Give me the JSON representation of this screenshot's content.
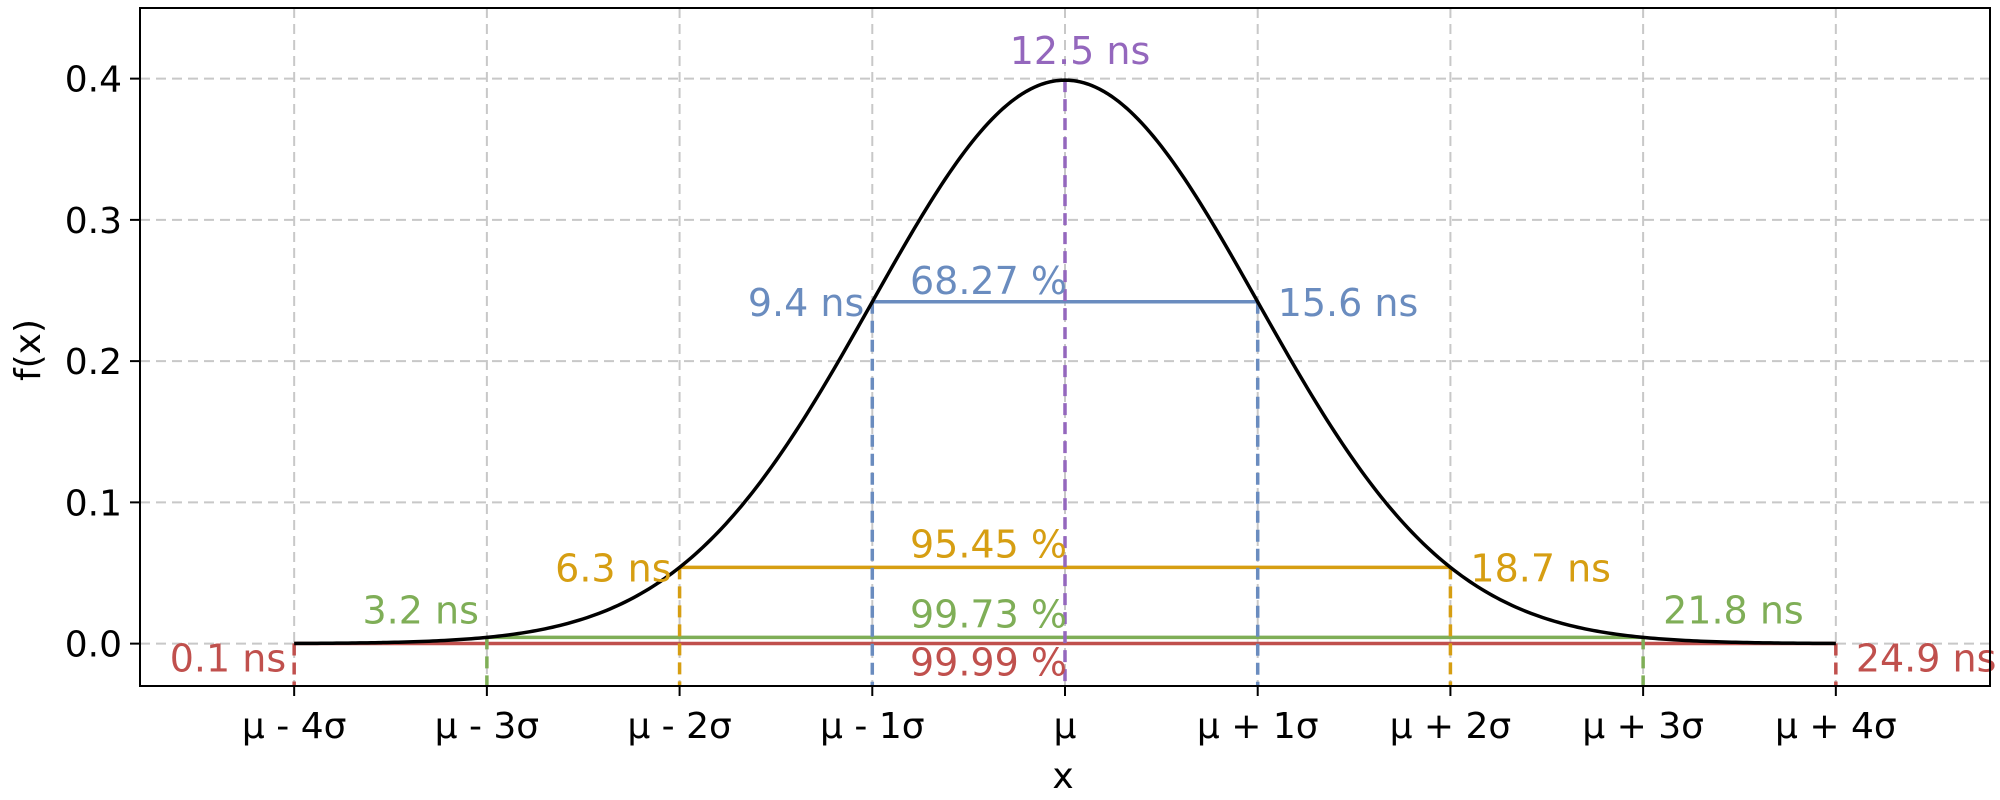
{
  "chart_data": {
    "type": "line",
    "title": "",
    "xlabel": "x",
    "ylabel": "f(x)",
    "xlim": [
      -4.8,
      4.8
    ],
    "ylim": [
      -0.03,
      0.45
    ],
    "grid": true,
    "curve": {
      "name": "",
      "function": "standard normal pdf",
      "x_range": [
        -4,
        4
      ],
      "color": "#000000"
    },
    "x_ticks": [
      {
        "value": -4,
        "label": "μ - 4σ"
      },
      {
        "value": -3,
        "label": "μ - 3σ"
      },
      {
        "value": -2,
        "label": "μ - 2σ"
      },
      {
        "value": -1,
        "label": "μ - 1σ"
      },
      {
        "value": 0,
        "label": "μ"
      },
      {
        "value": 1,
        "label": "μ + 1σ"
      },
      {
        "value": 2,
        "label": "μ + 2σ"
      },
      {
        "value": 3,
        "label": "μ + 3σ"
      },
      {
        "value": 4,
        "label": "μ + 4σ"
      }
    ],
    "y_ticks": [
      {
        "value": 0.0,
        "label": "0.0"
      },
      {
        "value": 0.1,
        "label": "0.1"
      },
      {
        "value": 0.2,
        "label": "0.2"
      },
      {
        "value": 0.3,
        "label": "0.3"
      },
      {
        "value": 0.4,
        "label": "0.4"
      }
    ],
    "mean_marker": {
      "x": 0,
      "y": 0.3989,
      "label": "12.5 ns",
      "color": "#9467bd"
    },
    "intervals": [
      {
        "k": 1,
        "y": 0.242,
        "percent": "68.27 %",
        "left_label": "9.4 ns",
        "right_label": "15.6 ns",
        "color": "#6a8cbf"
      },
      {
        "k": 2,
        "y": 0.054,
        "percent": "95.45 %",
        "left_label": "6.3 ns",
        "right_label": "18.7 ns",
        "color": "#d69e12"
      },
      {
        "k": 3,
        "y": 0.0044,
        "percent": "99.73 %",
        "left_label": "3.2 ns",
        "right_label": "21.8 ns",
        "color": "#7fae57"
      },
      {
        "k": 4,
        "y": 0.0001,
        "percent": "99.99 %",
        "left_label": "0.1 ns",
        "right_label": "24.9 ns",
        "color": "#c0504d"
      }
    ]
  }
}
